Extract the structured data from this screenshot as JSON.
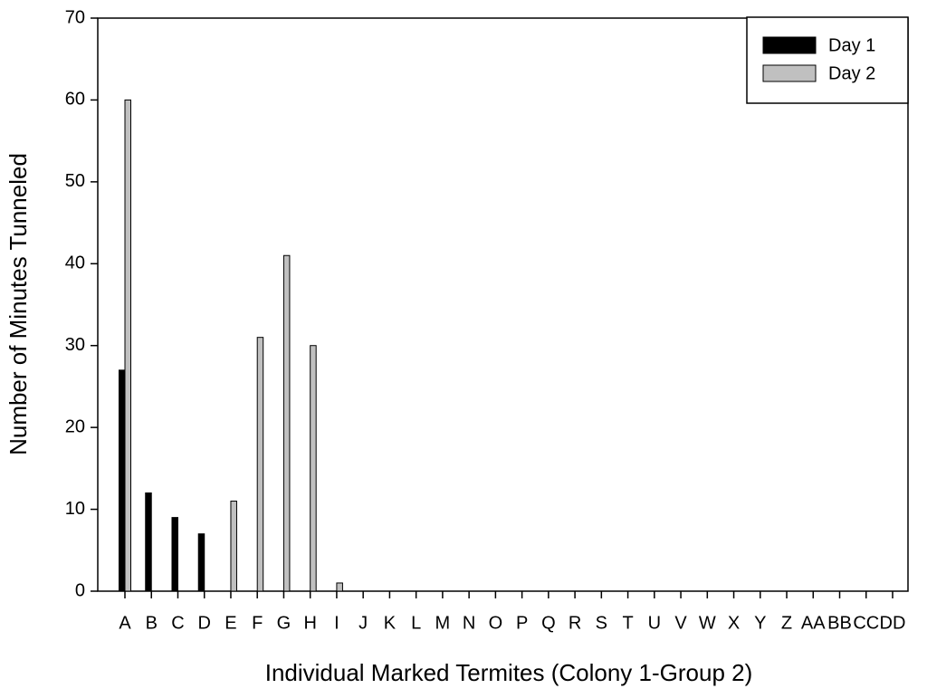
{
  "chart_data": {
    "type": "bar",
    "xlabel": "Individual Marked Termites (Colony 1-Group 2)",
    "ylabel": "Number of Minutes Tunneled",
    "categories": [
      "A",
      "B",
      "C",
      "D",
      "E",
      "F",
      "G",
      "H",
      "I",
      "J",
      "K",
      "L",
      "M",
      "N",
      "O",
      "P",
      "Q",
      "R",
      "S",
      "T",
      "U",
      "V",
      "W",
      "X",
      "Y",
      "Z",
      "AA",
      "BB",
      "CC",
      "DD"
    ],
    "series": [
      {
        "name": "Day 1",
        "color": "#000000",
        "values": [
          27,
          12,
          9,
          7,
          0,
          0,
          0,
          0,
          0,
          0,
          0,
          0,
          0,
          0,
          0,
          0,
          0,
          0,
          0,
          0,
          0,
          0,
          0,
          0,
          0,
          0,
          0,
          0,
          0,
          0
        ]
      },
      {
        "name": "Day 2",
        "color": "#c0c0c0",
        "values": [
          60,
          0,
          0,
          0,
          11,
          31,
          41,
          30,
          1,
          0,
          0,
          0,
          0,
          0,
          0,
          0,
          0,
          0,
          0,
          0,
          0,
          0,
          0,
          0,
          0,
          0,
          0,
          0,
          0,
          0
        ]
      }
    ],
    "ylim": [
      0,
      70
    ],
    "yticks": [
      0,
      10,
      20,
      30,
      40,
      50,
      60,
      70
    ],
    "grid": false,
    "legend": "upper right"
  }
}
